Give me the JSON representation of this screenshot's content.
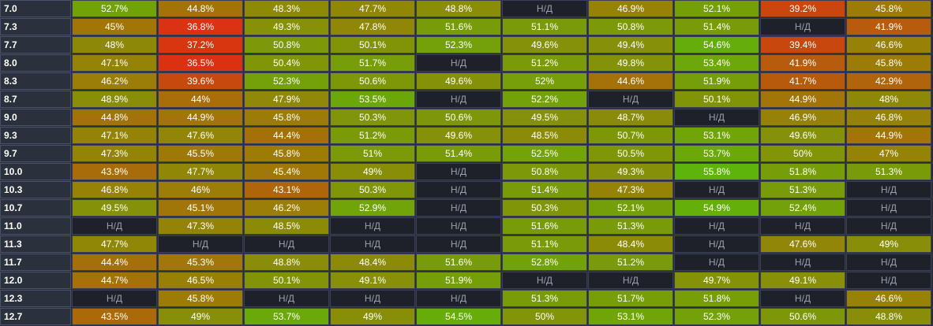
{
  "chart_data": {
    "type": "heatmap",
    "na_label": "Н/Д",
    "colors": {
      "low": "#dc3012",
      "mid": "#9a7e07",
      "high": "#5eb40a",
      "na": "#1e2129",
      "label_bg": "#2b303d"
    },
    "color_scale_range": [
      36.5,
      55.8
    ],
    "rows": [
      {
        "label": "7.0",
        "values": [
          52.7,
          44.8,
          48.3,
          47.7,
          48.8,
          null,
          46.9,
          52.1,
          39.2,
          45.8
        ]
      },
      {
        "label": "7.3",
        "values": [
          45,
          36.8,
          49.3,
          47.8,
          51.6,
          51.1,
          50.8,
          51.4,
          null,
          41.9
        ]
      },
      {
        "label": "7.7",
        "values": [
          48,
          37.2,
          50.8,
          50.1,
          52.3,
          49.6,
          49.4,
          54.6,
          39.4,
          46.6
        ]
      },
      {
        "label": "8.0",
        "values": [
          47.1,
          36.5,
          50.4,
          51.7,
          null,
          51.2,
          49.8,
          53.4,
          41.9,
          45.8
        ]
      },
      {
        "label": "8.3",
        "values": [
          46.2,
          39.6,
          52.3,
          50.6,
          49.6,
          52,
          44.6,
          51.9,
          41.7,
          42.9
        ]
      },
      {
        "label": "8.7",
        "values": [
          48.9,
          44,
          47.9,
          53.5,
          null,
          52.2,
          null,
          50.1,
          44.9,
          48
        ]
      },
      {
        "label": "9.0",
        "values": [
          44.8,
          44.9,
          45.8,
          50.3,
          50.6,
          49.5,
          48.7,
          null,
          46.9,
          46.8
        ]
      },
      {
        "label": "9.3",
        "values": [
          47.1,
          47.6,
          44.4,
          51.2,
          49.6,
          48.5,
          50.7,
          53.1,
          49.6,
          44.9
        ]
      },
      {
        "label": "9.7",
        "values": [
          47.3,
          45.5,
          45.8,
          51,
          51.4,
          52.5,
          50.5,
          53.7,
          50,
          47
        ]
      },
      {
        "label": "10.0",
        "values": [
          43.9,
          47.7,
          45.4,
          49,
          null,
          50.8,
          49.3,
          55.8,
          51.8,
          51.3
        ]
      },
      {
        "label": "10.3",
        "values": [
          46.8,
          46,
          43.1,
          50.3,
          null,
          51.4,
          47.3,
          null,
          51.3,
          null
        ]
      },
      {
        "label": "10.7",
        "values": [
          49.5,
          45.1,
          46.2,
          52.9,
          null,
          50.3,
          52.1,
          54.9,
          52.4,
          null
        ]
      },
      {
        "label": "11.0",
        "values": [
          null,
          47.3,
          48.5,
          null,
          null,
          51.6,
          51.3,
          null,
          null,
          null
        ]
      },
      {
        "label": "11.3",
        "values": [
          47.7,
          null,
          null,
          null,
          null,
          51.1,
          48.4,
          null,
          47.6,
          49
        ]
      },
      {
        "label": "11.7",
        "values": [
          44.4,
          45.3,
          48.8,
          48.4,
          51.6,
          52.8,
          51.2,
          null,
          null,
          null
        ]
      },
      {
        "label": "12.0",
        "values": [
          44.7,
          46.5,
          50.1,
          49.1,
          51.9,
          null,
          null,
          49.7,
          49.1,
          null
        ]
      },
      {
        "label": "12.3",
        "values": [
          null,
          45.8,
          null,
          null,
          null,
          51.3,
          51.7,
          51.8,
          null,
          46.6
        ]
      },
      {
        "label": "12.7",
        "values": [
          43.5,
          49,
          53.7,
          49,
          54.5,
          50,
          53.1,
          52.3,
          50.6,
          48.8
        ]
      }
    ]
  }
}
